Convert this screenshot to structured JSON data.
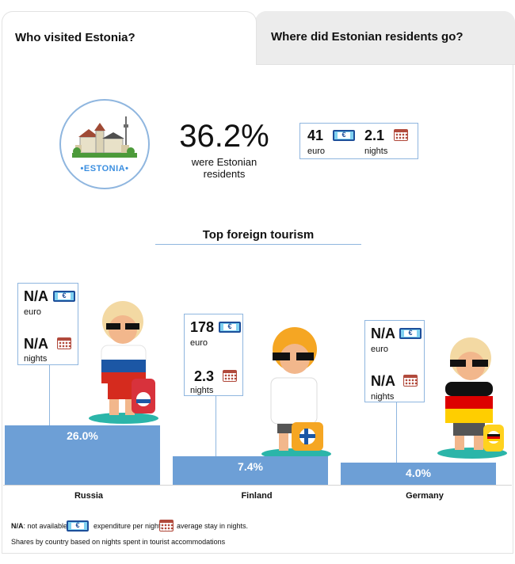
{
  "tabs": [
    {
      "label": "Who visited Estonia?"
    },
    {
      "label": "Where did Estonian residents go?"
    }
  ],
  "logo": {
    "text": "•ESTONIA•"
  },
  "residents": {
    "percent": "36.2%",
    "caption": "were Estonian residents",
    "euro_value": "41",
    "euro_unit": "euro",
    "nights_value": "2.1",
    "nights_unit": "nights"
  },
  "icons": {
    "euro": "€"
  },
  "colors": {
    "bar": "#6d9fd6",
    "box_border": "#8fb6df",
    "russia": "#d52b1e",
    "germany": "#ffce00"
  },
  "chart_data": {
    "type": "bar",
    "title": "Top foreign tourism",
    "categories": [
      "Russia",
      "Finland",
      "Germany"
    ],
    "values": [
      26.0,
      7.4,
      4.0
    ],
    "value_labels": [
      "26.0%",
      "7.4%",
      "4.0%"
    ],
    "euro": [
      "N/A",
      "178",
      "N/A"
    ],
    "nights": [
      "N/A",
      "2.3",
      "N/A"
    ],
    "euro_unit": "euro",
    "nights_unit": "nights"
  },
  "legend": {
    "na_abbrev": "N/A",
    "na_text": ": not available.",
    "euro_text": "expenditure per night.",
    "nights_text": "average stay in nights.",
    "note": "Shares by country based on nights spent in tourist accommodations"
  }
}
